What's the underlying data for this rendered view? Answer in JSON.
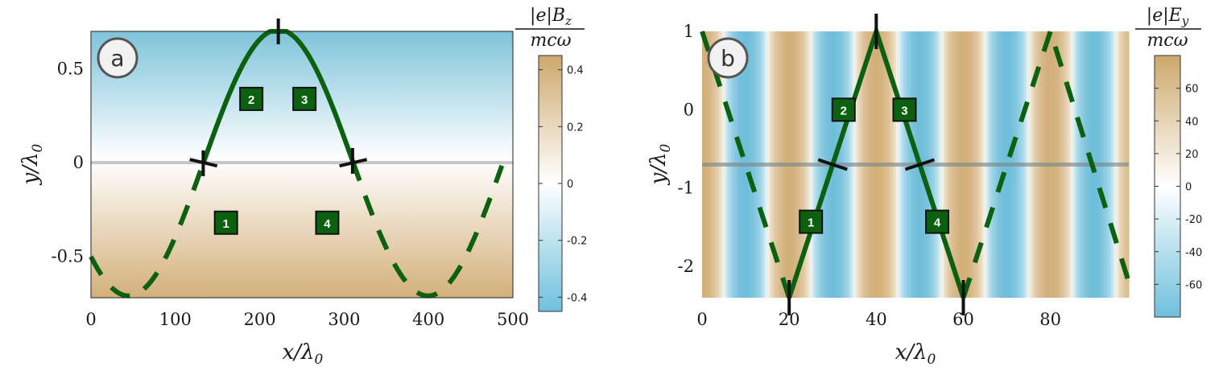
{
  "chart_data": [
    {
      "type": "line",
      "panel_label": "a",
      "xlabel": "x/λ0",
      "ylabel": "y/λ0",
      "xlim": [
        0,
        500
      ],
      "ylim": [
        -0.72,
        0.7
      ],
      "x_ticks": [
        0,
        100,
        200,
        300,
        400,
        500
      ],
      "x_tick_labels": [
        "0",
        "100",
        "200",
        "300",
        "400",
        "500"
      ],
      "y_ticks": [
        0.5,
        0,
        -0.5
      ],
      "y_tick_labels": [
        "0.5",
        "0",
        "-0.5"
      ],
      "background_field": "vertical gradient: blue at top (negative), white at y=0, tan at bottom (positive)",
      "trajectory": {
        "amplitude": 0.71,
        "period": 355,
        "peak_x": 222,
        "solid_range": [
          133,
          310
        ],
        "color": "#0b6110"
      },
      "markers": [
        {
          "label": "1",
          "x": 160,
          "y": -0.32
        },
        {
          "label": "2",
          "x": 190,
          "y": 0.34
        },
        {
          "label": "3",
          "x": 253,
          "y": 0.34
        },
        {
          "label": "4",
          "x": 280,
          "y": -0.32
        }
      ],
      "colorbar": {
        "title_num": "|e|B_z",
        "title_den": "mcω",
        "range": [
          -0.45,
          0.45
        ],
        "ticks": [
          0.4,
          0.2,
          0,
          -0.2,
          -0.4
        ],
        "tick_labels": [
          "0.4",
          "0.2",
          "0",
          "-0.2",
          "-0.4"
        ]
      }
    },
    {
      "type": "line",
      "panel_label": "b",
      "xlabel": "x/λ0",
      "ylabel": "y/λ0",
      "xlim": [
        0,
        98
      ],
      "ylim": [
        -2.4,
        1
      ],
      "x_ticks": [
        0,
        20,
        40,
        60,
        80
      ],
      "x_tick_labels": [
        "0",
        "20",
        "40",
        "60",
        "80"
      ],
      "y_ticks": [
        1,
        0,
        -1,
        -2
      ],
      "y_tick_labels": [
        "1",
        "0",
        "-1",
        "-2"
      ],
      "background_field": "vertical stripes alternating tan (positive) and blue (negative), period 20",
      "trajectory": {
        "shape": "triangle wave",
        "vertices": [
          [
            0,
            1
          ],
          [
            20,
            -2.4
          ],
          [
            40,
            1
          ],
          [
            60,
            -2.4
          ],
          [
            80,
            1
          ],
          [
            98,
            -2.2
          ]
        ],
        "solid_range": [
          20,
          60
        ],
        "color": "#0b6110"
      },
      "markers": [
        {
          "label": "1",
          "x": 25,
          "y": -1.43
        },
        {
          "label": "2",
          "x": 32.5,
          "y": 0
        },
        {
          "label": "3",
          "x": 46.5,
          "y": 0
        },
        {
          "label": "4",
          "x": 54,
          "y": -1.43
        }
      ],
      "colorbar": {
        "title_num": "|e|E_y",
        "title_den": "mcω",
        "range": [
          -80,
          80
        ],
        "ticks": [
          60,
          40,
          20,
          0,
          -20,
          -40,
          -60
        ],
        "tick_labels": [
          "60",
          "40",
          "20",
          "0",
          "-20",
          "-40",
          "-60"
        ]
      }
    }
  ]
}
